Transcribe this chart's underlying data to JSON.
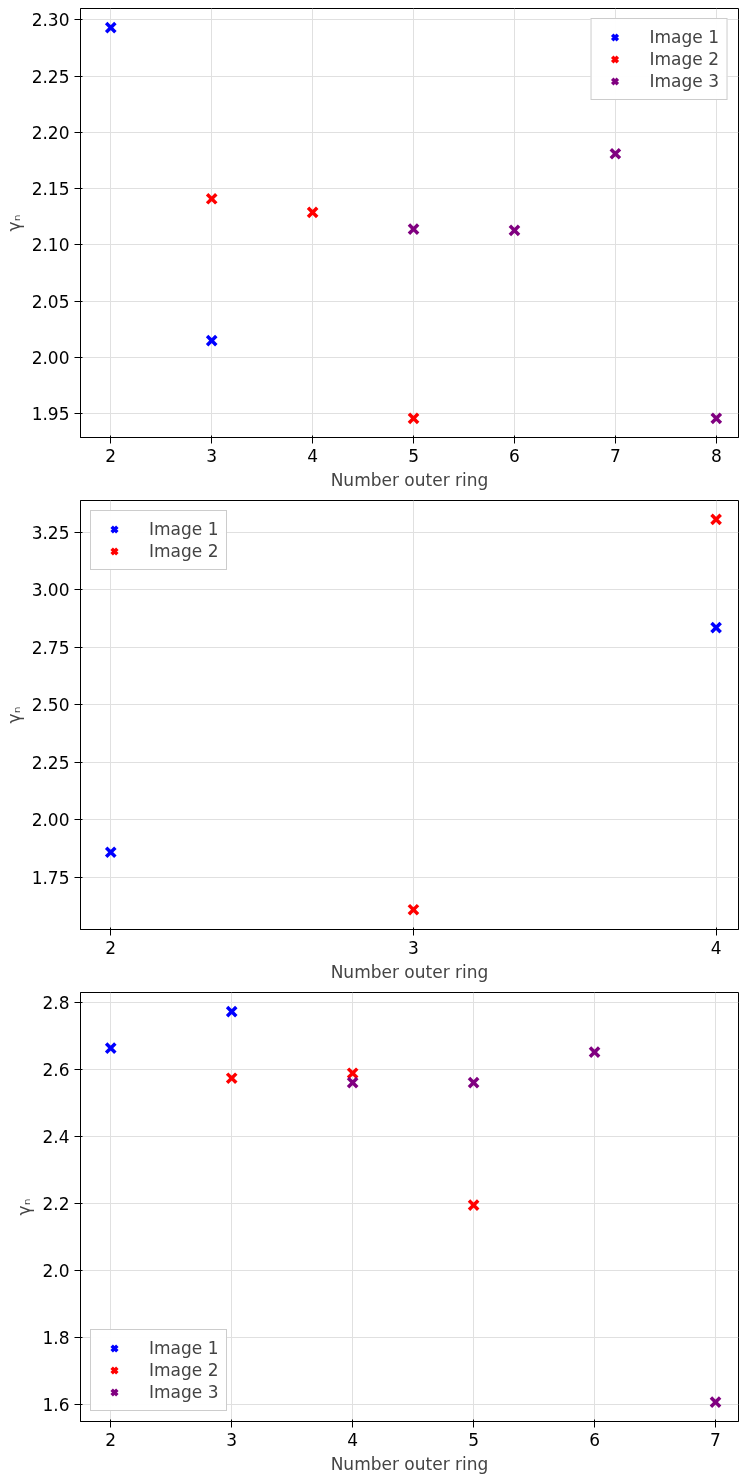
{
  "chart_data": [
    {
      "type": "scatter",
      "xlabel": "Number outer ring",
      "ylabel": "γₙ",
      "marker": "cross",
      "grid": true,
      "legend": "top right",
      "xlim": [
        1.7,
        8.22
      ],
      "xticks": [
        2,
        3,
        4,
        5,
        6,
        7,
        8
      ],
      "ylim": [
        1.929,
        2.31
      ],
      "yticks": [
        {
          "value": 1.95,
          "label": "1.95"
        },
        {
          "value": 2.0,
          "label": "2.00"
        },
        {
          "value": 2.05,
          "label": "2.05"
        },
        {
          "value": 2.1,
          "label": "2.10"
        },
        {
          "value": 2.15,
          "label": "2.15"
        },
        {
          "value": 2.2,
          "label": "2.20"
        },
        {
          "value": 2.25,
          "label": "2.25"
        },
        {
          "value": 2.3,
          "label": "2.30"
        }
      ],
      "series": [
        {
          "name": "Image 1",
          "color": "#0000ff",
          "x": [
            2,
            3
          ],
          "values": [
            2.293,
            2.015
          ]
        },
        {
          "name": "Image 2",
          "color": "#ff0000",
          "x": [
            3,
            4,
            5
          ],
          "values": [
            2.141,
            2.129,
            1.946
          ]
        },
        {
          "name": "Image 3",
          "color": "#800080",
          "x": [
            5,
            6,
            7,
            8
          ],
          "values": [
            2.114,
            2.113,
            2.181,
            1.946
          ]
        }
      ]
    },
    {
      "type": "scatter",
      "xlabel": "Number outer ring",
      "ylabel": "γₙ",
      "marker": "cross",
      "grid": true,
      "legend": "top left",
      "xlim": [
        1.9,
        4.074
      ],
      "xticks": [
        2,
        3,
        4
      ],
      "ylim": [
        1.522,
        3.388
      ],
      "yticks": [
        {
          "value": 1.75,
          "label": "1.75"
        },
        {
          "value": 2.0,
          "label": "2.00"
        },
        {
          "value": 2.25,
          "label": "2.25"
        },
        {
          "value": 2.5,
          "label": "2.50"
        },
        {
          "value": 2.75,
          "label": "2.75"
        },
        {
          "value": 3.0,
          "label": "3.00"
        },
        {
          "value": 3.25,
          "label": "3.25"
        }
      ],
      "series": [
        {
          "name": "Image 1",
          "color": "#0000ff",
          "x": [
            2,
            4
          ],
          "values": [
            1.858,
            2.835
          ]
        },
        {
          "name": "Image 2",
          "color": "#ff0000",
          "x": [
            3,
            4
          ],
          "values": [
            1.608,
            3.306
          ]
        }
      ]
    },
    {
      "type": "scatter",
      "xlabel": "Number outer ring",
      "ylabel": "γₙ",
      "marker": "cross",
      "grid": true,
      "legend": "bottom left",
      "xlim": [
        1.75,
        7.19
      ],
      "xticks": [
        2,
        3,
        4,
        5,
        6,
        7
      ],
      "ylim": [
        1.55,
        2.831
      ],
      "yticks": [
        {
          "value": 1.6,
          "label": "1.6"
        },
        {
          "value": 1.8,
          "label": "1.8"
        },
        {
          "value": 2.0,
          "label": "2.0"
        },
        {
          "value": 2.2,
          "label": "2.2"
        },
        {
          "value": 2.4,
          "label": "2.4"
        },
        {
          "value": 2.6,
          "label": "2.6"
        },
        {
          "value": 2.8,
          "label": "2.8"
        }
      ],
      "series": [
        {
          "name": "Image 1",
          "color": "#0000ff",
          "x": [
            2,
            3
          ],
          "values": [
            2.665,
            2.774
          ]
        },
        {
          "name": "Image 2",
          "color": "#ff0000",
          "x": [
            3,
            4,
            5
          ],
          "values": [
            2.575,
            2.59,
            2.196
          ]
        },
        {
          "name": "Image 3",
          "color": "#800080",
          "x": [
            4,
            5,
            6,
            7
          ],
          "values": [
            2.562,
            2.562,
            2.653,
            1.608
          ]
        }
      ]
    }
  ]
}
